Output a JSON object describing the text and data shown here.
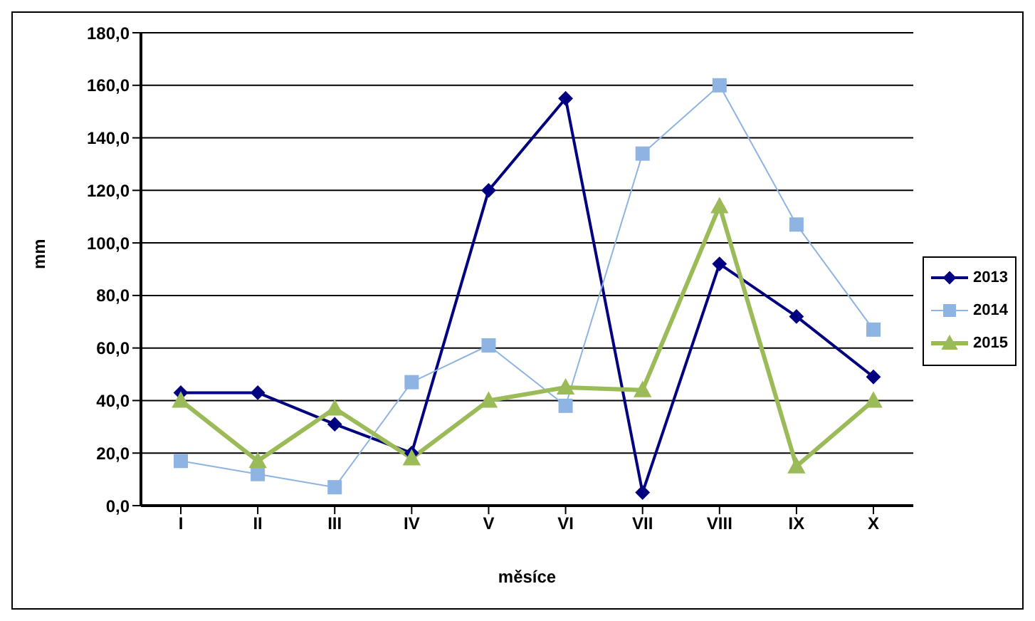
{
  "chart_data": {
    "type": "line",
    "xlabel": "měsíce",
    "ylabel": "mm",
    "categories": [
      "I",
      "II",
      "III",
      "IV",
      "V",
      "VI",
      "VII",
      "VIII",
      "IX",
      "X"
    ],
    "series": [
      {
        "name": "2013",
        "color": "#000080",
        "marker": "diamond",
        "values": [
          43,
          43,
          31,
          20,
          120,
          155,
          5,
          92,
          72,
          49
        ]
      },
      {
        "name": "2014",
        "color": "#8db4e2",
        "marker": "square",
        "values": [
          17,
          12,
          7,
          47,
          61,
          38,
          134,
          160,
          107,
          67
        ]
      },
      {
        "name": "2015",
        "color": "#9bbb59",
        "marker": "triangle",
        "values": [
          40,
          17,
          37,
          18,
          40,
          45,
          44,
          114,
          15,
          40
        ]
      }
    ],
    "ylim": [
      0,
      180
    ],
    "yticks": [
      {
        "value": 0,
        "label": "0,0"
      },
      {
        "value": 20,
        "label": "20,0"
      },
      {
        "value": 40,
        "label": "40,0"
      },
      {
        "value": 60,
        "label": "60,0"
      },
      {
        "value": 80,
        "label": "80,0"
      },
      {
        "value": 100,
        "label": "100,0"
      },
      {
        "value": 120,
        "label": "120,0"
      },
      {
        "value": 140,
        "label": "140,0"
      },
      {
        "value": 160,
        "label": "160,0"
      },
      {
        "value": 180,
        "label": "180,0"
      }
    ],
    "grid": "y",
    "legend": "right"
  }
}
